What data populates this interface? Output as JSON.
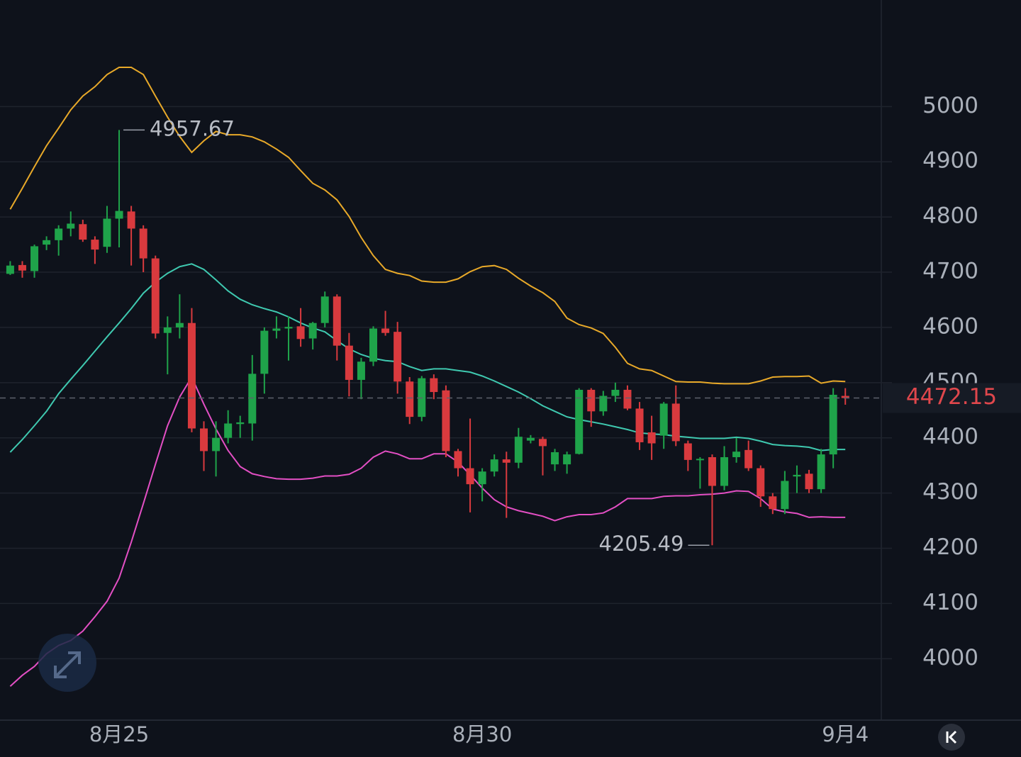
{
  "chart_data": {
    "type": "candlestick",
    "categories": [
      null,
      null,
      null,
      null,
      null,
      null,
      null,
      null,
      null,
      "8月25",
      null,
      null,
      null,
      null,
      null,
      null,
      null,
      null,
      null,
      null,
      null,
      null,
      null,
      null,
      null,
      null,
      null,
      null,
      null,
      null,
      null,
      null,
      null,
      null,
      null,
      null,
      null,
      null,
      null,
      "8月30",
      null,
      null,
      null,
      null,
      null,
      null,
      null,
      null,
      null,
      null,
      null,
      null,
      null,
      null,
      null,
      null,
      null,
      null,
      null,
      null,
      null,
      null,
      null,
      null,
      null,
      null,
      null,
      null,
      null,
      "9月4"
    ],
    "open": [
      4697,
      4713,
      4702,
      4750,
      4758,
      4779,
      4787,
      4759,
      4746,
      4797,
      4810,
      4779,
      4725,
      4590,
      4600,
      4608,
      4417,
      4376,
      4400,
      4425,
      4426,
      4516,
      4594,
      4598,
      4602,
      4580,
      4608,
      4656,
      4567,
      4505,
      4538,
      4598,
      4592,
      4502,
      4438,
      4508,
      4486,
      4376,
      4345,
      4316,
      4339,
      4361,
      4355,
      4395,
      4398,
      4352,
      4352,
      4371,
      4487,
      4448,
      4476,
      4487,
      4453,
      4410,
      4404,
      4462,
      4390,
      4360,
      4365,
      4313,
      4365,
      4378,
      4345,
      4294,
      4271,
      4330,
      4335,
      4307,
      4370,
      4476
    ],
    "high": [
      4720,
      4720,
      4750,
      4765,
      4785,
      4810,
      4795,
      4765,
      4820,
      4957.67,
      4820,
      4785,
      4730,
      4620,
      4660,
      4635,
      4430,
      4430,
      4450,
      4440,
      4550,
      4600,
      4620,
      4620,
      4635,
      4610,
      4665,
      4660,
      4590,
      4545,
      4602,
      4630,
      4610,
      4510,
      4512,
      4515,
      4495,
      4380,
      4435,
      4345,
      4370,
      4375,
      4418,
      4405,
      4402,
      4380,
      4375,
      4490,
      4490,
      4485,
      4500,
      4495,
      4465,
      4440,
      4465,
      4495,
      4395,
      4365,
      4370,
      4385,
      4400,
      4395,
      4350,
      4300,
      4340,
      4350,
      4342,
      4380,
      4490,
      4490
    ],
    "low": [
      4695,
      4690,
      4690,
      4740,
      4730,
      4765,
      4755,
      4715,
      4735,
      4745,
      4712,
      4700,
      4580,
      4515,
      4580,
      4410,
      4340,
      4330,
      4390,
      4400,
      4395,
      4480,
      4580,
      4540,
      4565,
      4560,
      4600,
      4540,
      4475,
      4470,
      4530,
      4585,
      4480,
      4425,
      4430,
      4470,
      4365,
      4330,
      4265,
      4285,
      4330,
      4255,
      4345,
      4390,
      4332,
      4340,
      4335,
      4370,
      4420,
      4440,
      4465,
      4450,
      4378,
      4360,
      4380,
      4385,
      4340,
      4308,
      4205.49,
      4305,
      4355,
      4340,
      4275,
      4262,
      4262,
      4300,
      4300,
      4300,
      4345,
      4460
    ],
    "close": [
      4712,
      4703,
      4747,
      4758,
      4779,
      4788,
      4759,
      4741,
      4797,
      4811,
      4779,
      4725,
      4589,
      4600,
      4608,
      4417,
      4376,
      4400,
      4426,
      4428,
      4516,
      4594,
      4598,
      4601,
      4579,
      4608,
      4656,
      4567,
      4505,
      4538,
      4598,
      4590,
      4502,
      4438,
      4508,
      4483,
      4376,
      4345,
      4316,
      4339,
      4361,
      4355,
      4402,
      4400,
      4385,
      4374,
      4370,
      4487,
      4448,
      4476,
      4487,
      4453,
      4392,
      4390,
      4462,
      4394,
      4360,
      4362,
      4313,
      4365,
      4375,
      4345,
      4294,
      4271,
      4322,
      4333,
      4307,
      4370,
      4478,
      4472.15
    ],
    "up_color": "#1fa34a",
    "down_color": "#d93a3e",
    "series": [
      {
        "color": "#e8a929",
        "values": [
          4814,
          4852,
          4891,
          4929,
          4961,
          4994,
          5019,
          5036,
          5058,
          5071,
          5071,
          5058,
          5019,
          4981,
          4946,
          4917,
          4938,
          4955,
          4949,
          4949,
          4945,
          4936,
          4923,
          4908,
          4884,
          4861,
          4849,
          4831,
          4801,
          4763,
          4730,
          4705,
          4698,
          4694,
          4684,
          4682,
          4682,
          4688,
          4701,
          4710,
          4712,
          4705,
          4689,
          4675,
          4663,
          4647,
          4617,
          4605,
          4599,
          4589,
          4564,
          4535,
          4525,
          4522,
          4512,
          4502,
          4501,
          4501,
          4499,
          4498,
          4498,
          4498,
          4503,
          4510,
          4511,
          4511,
          4512,
          4499,
          4503,
          4502
        ]
      },
      {
        "color": "#3fc9b0",
        "values": [
          4374,
          4397,
          4422,
          4448,
          4480,
          4506,
          4531,
          4557,
          4583,
          4608,
          4634,
          4662,
          4682,
          4698,
          4710,
          4715,
          4705,
          4686,
          4666,
          4651,
          4641,
          4634,
          4628,
          4619,
          4608,
          4599,
          4592,
          4576,
          4561,
          4551,
          4544,
          4540,
          4538,
          4529,
          4522,
          4525,
          4525,
          4522,
          4519,
          4512,
          4503,
          4493,
          4483,
          4471,
          4458,
          4448,
          4438,
          4433,
          4429,
          4425,
          4420,
          4415,
          4409,
          4407,
          4406,
          4403,
          4401,
          4399,
          4399,
          4399,
          4401,
          4399,
          4394,
          4388,
          4386,
          4385,
          4383,
          4377,
          4379,
          4379
        ]
      },
      {
        "color": "#e34fc4",
        "values": [
          3950,
          3970,
          3986,
          4009,
          4024,
          4033,
          4050,
          4076,
          4104,
          4146,
          4211,
          4281,
          4352,
          4422,
          4474,
          4510,
          4461,
          4416,
          4377,
          4348,
          4335,
          4330,
          4326,
          4325,
          4325,
          4327,
          4331,
          4331,
          4334,
          4345,
          4365,
          4376,
          4371,
          4362,
          4362,
          4371,
          4371,
          4356,
          4333,
          4309,
          4288,
          4275,
          4268,
          4263,
          4258,
          4250,
          4257,
          4261,
          4261,
          4264,
          4275,
          4290,
          4290,
          4290,
          4294,
          4295,
          4295,
          4297,
          4298,
          4300,
          4304,
          4303,
          4290,
          4271,
          4266,
          4263,
          4256,
          4257,
          4256,
          4256
        ]
      }
    ],
    "ylim": [
      3890,
      5193
    ],
    "yticks": [
      4000,
      4100,
      4200,
      4300,
      4400,
      4500,
      4600,
      4700,
      4800,
      4900,
      5000
    ],
    "grid": true
  }
}
